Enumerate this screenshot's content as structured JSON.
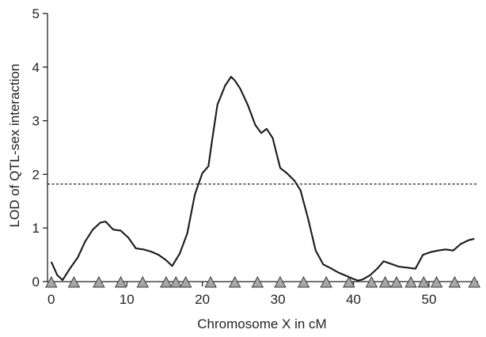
{
  "chart_data": {
    "type": "line",
    "title": "",
    "xlabel": "Chromosome X in cM",
    "ylabel": "LOD of QTL-sex interaction",
    "xlim": [
      -0.5,
      56.5
    ],
    "ylim": [
      0,
      5
    ],
    "xticks": [
      0,
      10,
      20,
      30,
      40,
      50
    ],
    "yticks": [
      0,
      1,
      2,
      3,
      4,
      5
    ],
    "grid": false,
    "threshold": 1.82,
    "line_color": "#1a1a1a",
    "marker_color": "#a6a6a6",
    "series": [
      {
        "x": [
          0,
          0.8,
          1.5,
          2.5,
          3.5,
          4.5,
          5.5,
          6.5,
          7.2,
          8.2,
          9.2,
          10.2,
          11.2,
          12.2,
          13.2,
          14.2,
          15.2,
          16,
          17,
          18,
          19,
          20,
          20.8,
          21.3,
          22,
          23,
          23.8,
          24.3,
          25,
          26,
          27,
          27.8,
          28.5,
          29.3,
          30.3,
          31.2,
          32.2,
          33,
          34,
          35,
          36,
          37,
          38,
          39,
          40,
          40.6,
          41.2,
          42.2,
          43.2,
          44,
          45,
          46,
          47.2,
          48.2,
          49.2,
          50.2,
          51.2,
          52.2,
          53.2,
          54.2,
          55.2,
          56
        ],
        "y": [
          0.37,
          0.12,
          0.03,
          0.25,
          0.45,
          0.75,
          0.97,
          1.1,
          1.12,
          0.97,
          0.95,
          0.82,
          0.62,
          0.6,
          0.56,
          0.5,
          0.4,
          0.29,
          0.52,
          0.9,
          1.62,
          2.02,
          2.15,
          2.65,
          3.3,
          3.65,
          3.82,
          3.75,
          3.6,
          3.3,
          2.92,
          2.77,
          2.85,
          2.68,
          2.12,
          2.02,
          1.88,
          1.7,
          1.17,
          0.58,
          0.32,
          0.25,
          0.17,
          0.11,
          0.05,
          0.02,
          0.04,
          0.12,
          0.25,
          0.38,
          0.33,
          0.28,
          0.26,
          0.24,
          0.5,
          0.55,
          0.58,
          0.6,
          0.58,
          0.7,
          0.77,
          0.8
        ]
      }
    ],
    "markers_x": [
      0,
      3,
      6.3,
      9.2,
      12.1,
      15.2,
      16.5,
      17.8,
      21.1,
      24.3,
      27.3,
      30.3,
      33.4,
      36.4,
      39.4,
      42.4,
      44.2,
      45.7,
      47.6,
      49.3,
      51,
      53.4,
      56
    ]
  }
}
